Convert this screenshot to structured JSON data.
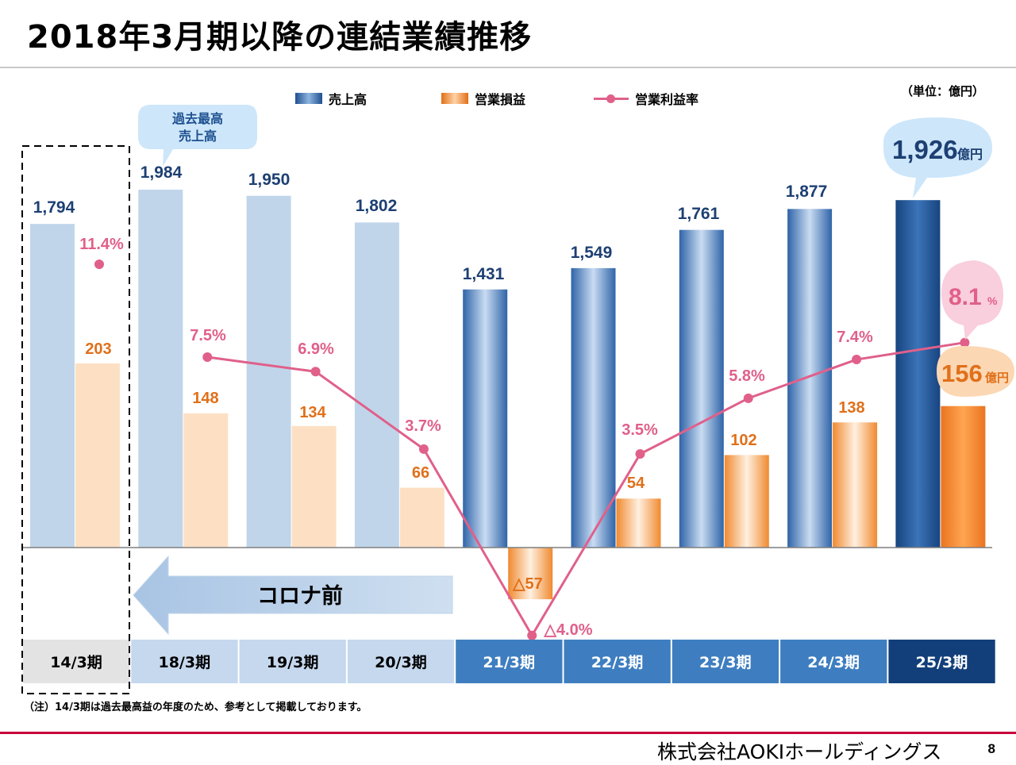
{
  "page": {
    "title": "2018年3月期以降の連結業績推移",
    "unit_note": "（単位：億円）",
    "note": "（注）14/3期は過去最高益の年度のため、参考として掲載しております。",
    "company": "株式会社AOKIホールディングス",
    "page_number": "8",
    "callout_record": "過去最高\n売上高",
    "pre_corona_label": "コロナ前",
    "latest_sales_value": "1,926",
    "latest_sales_unit": "億円",
    "latest_op_value": "156",
    "latest_op_unit": "億円",
    "latest_margin_value": "8.1",
    "latest_margin_unit": "%"
  },
  "chart_data": {
    "type": "bar",
    "categories": [
      "14/3期",
      "18/3期",
      "19/3期",
      "20/3期",
      "21/3期",
      "22/3期",
      "23/3期",
      "24/3期",
      "25/3期"
    ],
    "legend": [
      "売上高",
      "営業損益",
      "営業利益率"
    ],
    "series": [
      {
        "name": "売上高",
        "values": [
          1794,
          1984,
          1950,
          1802,
          1431,
          1549,
          1761,
          1877,
          1926
        ],
        "labels": [
          "1,794",
          "1,984",
          "1,950",
          "1,802",
          "1,431",
          "1,549",
          "1,761",
          "1,877",
          "1,926"
        ]
      },
      {
        "name": "営業損益",
        "values": [
          203,
          148,
          134,
          66,
          -57,
          54,
          102,
          138,
          156
        ],
        "labels": [
          "203",
          "148",
          "134",
          "66",
          "△57",
          "54",
          "102",
          "138",
          "156"
        ]
      },
      {
        "name": "営業利益率",
        "type": "line",
        "values": [
          11.4,
          7.5,
          6.9,
          3.7,
          -4.0,
          3.5,
          5.8,
          7.4,
          8.1
        ],
        "labels": [
          "11.4%",
          "7.5%",
          "6.9%",
          "3.7%",
          "△4.0%",
          "3.5%",
          "5.8%",
          "7.4%",
          "8.1%"
        ]
      }
    ],
    "colors": {
      "sales_pre": "#c0d5ea",
      "sales_post": "#3a70b5",
      "sales_latest": "#1d4f8f",
      "op_pre": "#fde0c4",
      "op_post": "#f5a050",
      "op_latest": "#ee7d22",
      "line": "#e0608a",
      "label_sales": "#1d3f73",
      "label_op": "#e0701a",
      "label_margin": "#e0608a",
      "header_pre": "#c5d8ee",
      "header_post": "#3e7ec0",
      "header_latest": "#123f7a",
      "header_base": "#e3e3e3"
    }
  }
}
